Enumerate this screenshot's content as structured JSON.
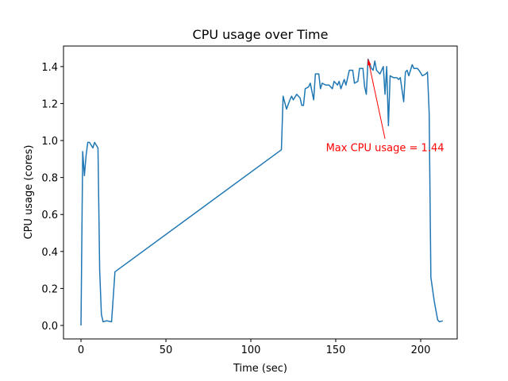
{
  "chart_data": {
    "type": "line",
    "title": "CPU usage over Time",
    "x_label": "Time (sec)",
    "y_label": "CPU usage (cores)",
    "color": "#1f77b4",
    "x": [
      0,
      1,
      2,
      3,
      4,
      5,
      7,
      8,
      10,
      11,
      12,
      13,
      15,
      18,
      20,
      118,
      119,
      121,
      123,
      124,
      125,
      127,
      129,
      130,
      131,
      132,
      134,
      135,
      137,
      138,
      140,
      141,
      142,
      144,
      146,
      148,
      149,
      151,
      152,
      153,
      155,
      156,
      158,
      160,
      161,
      163,
      164,
      166,
      167,
      168,
      169,
      171,
      172,
      173,
      174,
      176,
      178,
      179,
      180,
      181,
      182,
      184,
      186,
      187,
      188,
      190,
      191,
      192,
      193,
      195,
      196,
      198,
      199,
      201,
      203,
      204,
      205,
      206,
      208,
      210,
      211,
      213
    ],
    "values": [
      0.0,
      0.94,
      0.81,
      0.92,
      0.99,
      0.99,
      0.96,
      0.99,
      0.96,
      0.3,
      0.06,
      0.02,
      0.025,
      0.02,
      0.29,
      0.95,
      1.24,
      1.17,
      1.22,
      1.24,
      1.22,
      1.25,
      1.23,
      1.19,
      1.19,
      1.28,
      1.29,
      1.31,
      1.22,
      1.36,
      1.36,
      1.28,
      1.31,
      1.3,
      1.3,
      1.28,
      1.32,
      1.3,
      1.32,
      1.28,
      1.33,
      1.3,
      1.38,
      1.38,
      1.31,
      1.32,
      1.39,
      1.39,
      1.29,
      1.25,
      1.44,
      1.39,
      1.38,
      1.43,
      1.38,
      1.36,
      1.4,
      1.25,
      1.4,
      1.08,
      1.35,
      1.34,
      1.34,
      1.33,
      1.34,
      1.21,
      1.37,
      1.38,
      1.35,
      1.41,
      1.39,
      1.39,
      1.38,
      1.35,
      1.36,
      1.37,
      1.15,
      0.26,
      0.13,
      0.03,
      0.02,
      0.025
    ],
    "xlim": [
      -10.3,
      221.5
    ],
    "ylim": [
      -0.073,
      1.511
    ],
    "xticks": [
      0,
      50,
      100,
      150,
      200
    ],
    "yticks": [
      {
        "value": 0,
        "label": "0.0"
      },
      0.2,
      0.4,
      0.6,
      0.8,
      {
        "value": 1,
        "label": "1.0"
      },
      1.2,
      1.4
    ],
    "annotation": {
      "text": "Max CPU usage = 1.44",
      "xy": [
        169,
        1.44
      ],
      "xytext": [
        179,
        1.01
      ],
      "color": "red"
    }
  }
}
